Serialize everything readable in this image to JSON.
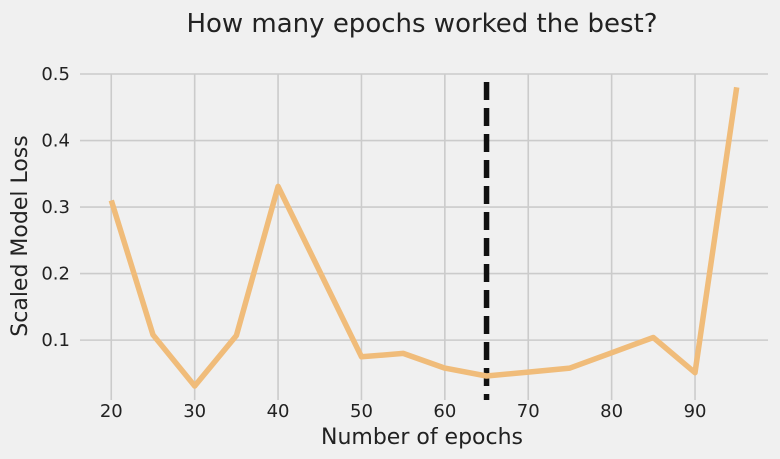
{
  "chart_data": {
    "type": "line",
    "title": "How many epochs worked the best?",
    "xlabel": "Number of epochs",
    "ylabel": "Scaled Model Loss",
    "x": [
      20,
      25,
      30,
      35,
      40,
      50,
      55,
      60,
      65,
      70,
      75,
      80,
      85,
      90,
      95
    ],
    "series": [
      {
        "values": [
          0.31,
          0.108,
          0.031,
          0.107,
          0.331,
          0.075,
          0.08,
          0.058,
          0.046,
          0.052,
          0.058,
          0.081,
          0.104,
          0.051,
          0.48
        ]
      }
    ],
    "xticks": [
      20,
      30,
      40,
      50,
      60,
      70,
      80,
      90
    ],
    "yticks": [
      0.1,
      0.2,
      0.3,
      0.4,
      0.5
    ],
    "xlim": [
      16.25,
      98.75
    ],
    "ylim": [
      0.01,
      0.5
    ],
    "vline": {
      "x": 65,
      "style": "dashed"
    },
    "grid": true,
    "colors": {
      "line": "#f0bc7a",
      "vline": "#111111",
      "grid": "#cbcbcb",
      "background": "#f0f0f0"
    }
  }
}
